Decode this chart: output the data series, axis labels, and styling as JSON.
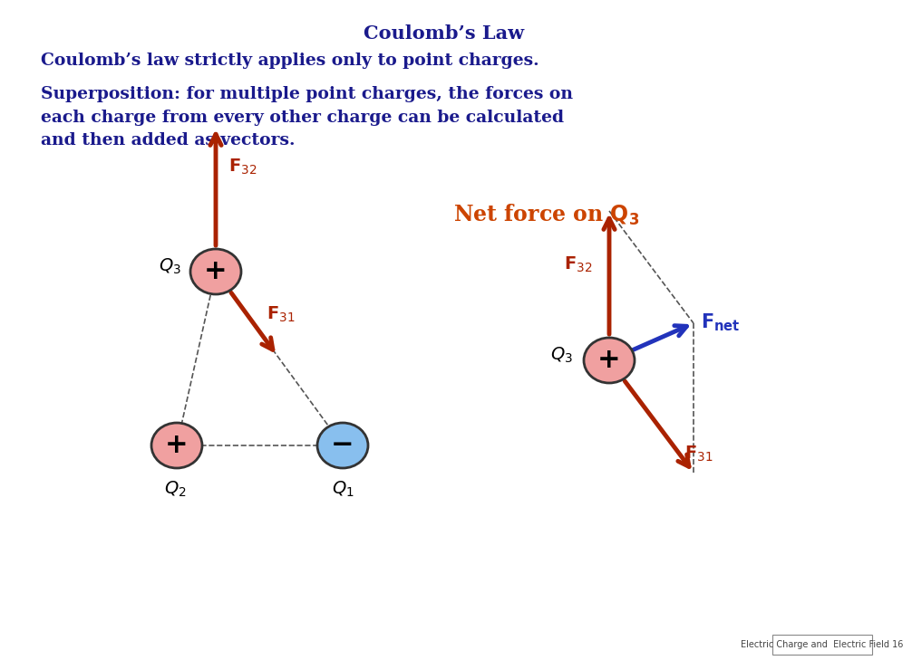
{
  "title": "Coulomb’s Law",
  "title_color": "#1a1a8c",
  "title_fontsize": 15,
  "line1": "Coulomb’s law strictly applies only to point charges.",
  "line2": "Superposition: for multiple point charges, the forces on\neach charge from every other charge can be calculated\nand then added as vectors.",
  "text_color": "#1a1a8c",
  "text_fontsize": 13.5,
  "net_force_color": "#cc4400",
  "net_force_fontsize": 17,
  "arrow_color": "#aa2200",
  "arrow_fnet_color": "#2233bb",
  "dashed_color": "#555555",
  "q3_color_pink": "#f0a0a0",
  "q2_color_pink": "#f0a0a0",
  "q1_color_blue": "#88bfee",
  "circle_edge": "#333333",
  "plus_minus_color": "#000000",
  "label_color": "#000000",
  "footer_text": "Electric Charge and  Electric Field 16",
  "footer_fontsize": 7,
  "bg_color": "#ffffff"
}
